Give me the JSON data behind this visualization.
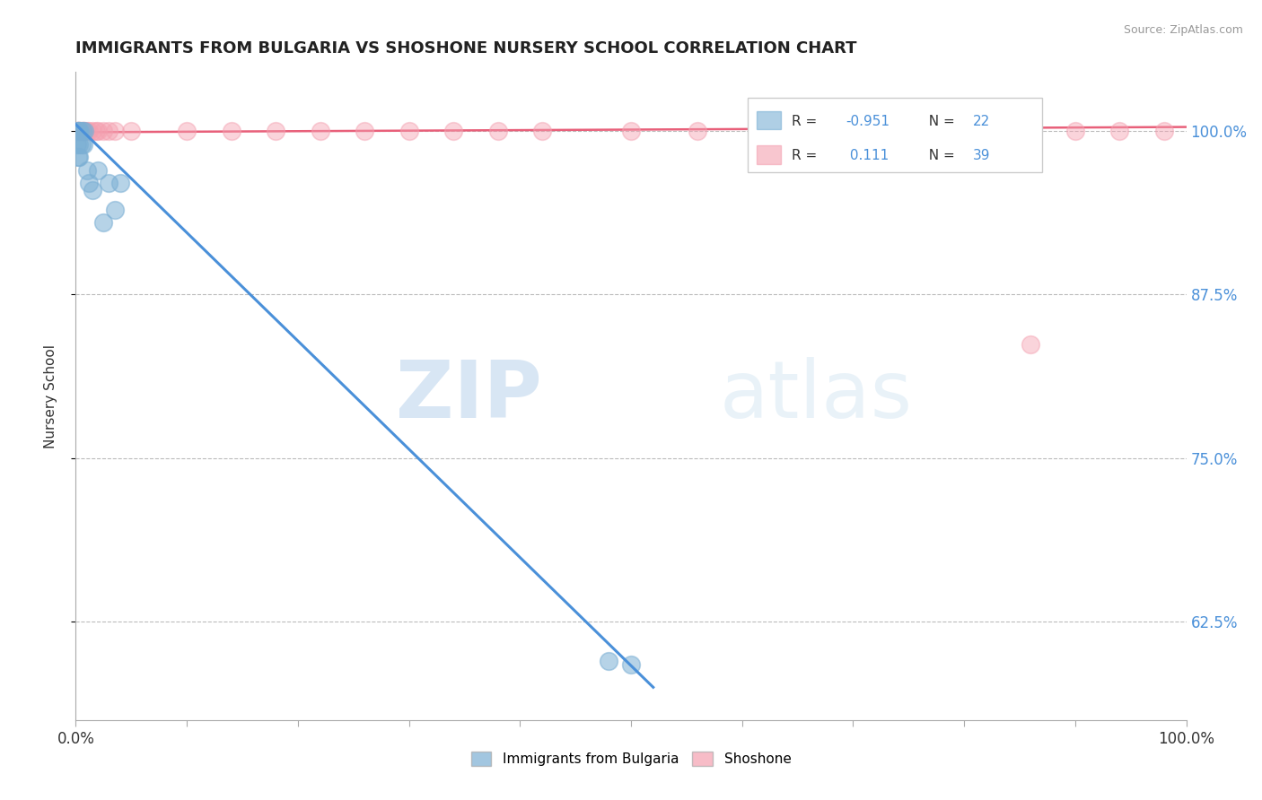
{
  "title": "IMMIGRANTS FROM BULGARIA VS SHOSHONE NURSERY SCHOOL CORRELATION CHART",
  "source_text": "Source: ZipAtlas.com",
  "ylabel": "Nursery School",
  "blue_color": "#7BAFD4",
  "pink_color": "#F4A0B0",
  "blue_line_color": "#4A90D9",
  "pink_line_color": "#E8607A",
  "blue_label": "Immigrants from Bulgaria",
  "pink_label": "Shoshone",
  "blue_R": -0.951,
  "blue_N": 22,
  "pink_R": 0.111,
  "pink_N": 39,
  "blue_scatter_x": [
    0.001,
    0.001,
    0.002,
    0.002,
    0.003,
    0.003,
    0.003,
    0.004,
    0.005,
    0.006,
    0.007,
    0.008,
    0.01,
    0.012,
    0.015,
    0.02,
    0.025,
    0.03,
    0.035,
    0.04,
    0.48,
    0.5
  ],
  "blue_scatter_y": [
    1.0,
    0.99,
    1.0,
    0.98,
    1.0,
    0.99,
    0.98,
    1.0,
    0.99,
    1.0,
    0.99,
    1.0,
    0.97,
    0.96,
    0.955,
    0.97,
    0.93,
    0.96,
    0.94,
    0.96,
    0.595,
    0.592
  ],
  "pink_scatter_x": [
    0.001,
    0.001,
    0.002,
    0.003,
    0.003,
    0.004,
    0.005,
    0.006,
    0.007,
    0.008,
    0.01,
    0.012,
    0.015,
    0.018,
    0.02,
    0.025,
    0.03,
    0.035,
    0.05,
    0.1,
    0.14,
    0.18,
    0.22,
    0.26,
    0.3,
    0.34,
    0.38,
    0.42,
    0.5,
    0.56,
    0.62,
    0.68,
    0.72,
    0.76,
    0.82,
    0.86,
    0.9,
    0.94,
    0.98
  ],
  "pink_scatter_y": [
    1.0,
    1.0,
    1.0,
    1.0,
    1.0,
    1.0,
    1.0,
    1.0,
    1.0,
    1.0,
    1.0,
    1.0,
    1.0,
    1.0,
    1.0,
    1.0,
    1.0,
    1.0,
    1.0,
    1.0,
    1.0,
    1.0,
    1.0,
    1.0,
    1.0,
    1.0,
    1.0,
    1.0,
    1.0,
    1.0,
    1.0,
    1.0,
    1.0,
    1.0,
    1.0,
    0.837,
    1.0,
    1.0,
    1.0
  ],
  "blue_line_x": [
    0.0,
    0.52
  ],
  "blue_line_y": [
    1.005,
    0.575
  ],
  "pink_line_x": [
    0.0,
    1.0
  ],
  "pink_line_y": [
    0.999,
    1.003
  ],
  "xlim": [
    0.0,
    1.0
  ],
  "ylim": [
    0.55,
    1.045
  ],
  "yticks": [
    0.625,
    0.75,
    0.875,
    1.0
  ],
  "ytick_labels": [
    "62.5%",
    "75.0%",
    "87.5%",
    "100.0%"
  ],
  "xticks": [
    0.0,
    0.1,
    0.2,
    0.3,
    0.4,
    0.5,
    0.6,
    0.7,
    0.8,
    0.9,
    1.0
  ],
  "watermark_zip": "ZIP",
  "watermark_atlas": "atlas",
  "background_color": "#FFFFFF",
  "grid_color": "#BBBBBB"
}
